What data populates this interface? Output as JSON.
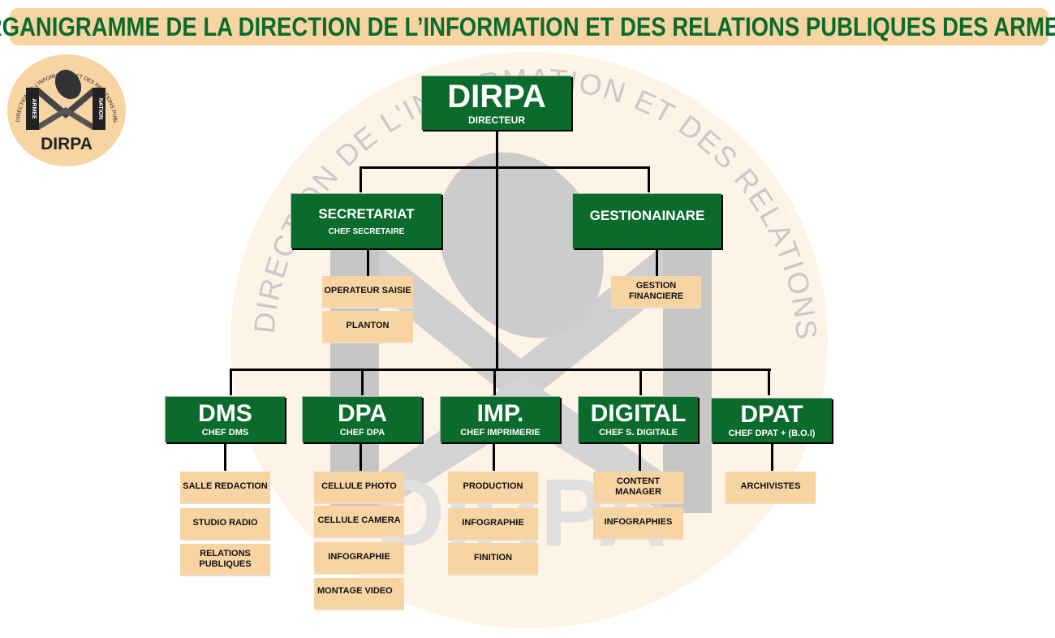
{
  "title": "ORGANIGRAMME DE LA DIRECTION DE L’INFORMATION ET DES RELATIONS PUBLIQUES DES ARMEES",
  "logo": {
    "ring_text": "DIRECTION DE L'INFORMATION ET DES RELATIONS PUBLIQUES DES ARMEES",
    "left_word": "ARMEE",
    "right_word": "NATION",
    "name": "DIRPA"
  },
  "watermark": {
    "ring_text": "DIRECTION DE L'INFORMATION ET DES RELATIONS PUBLIQUES DES ARMÉES",
    "name": "DIRPA"
  },
  "colors": {
    "green": "#0b6b2c",
    "peach": "#f8d4a3",
    "title_green": "#0b6b2c"
  },
  "director": {
    "name": "DIRPA",
    "role": "DIRECTEUR"
  },
  "secretariat": {
    "name": "SECRETARIAT",
    "role": "CHEF SECRETAIRE",
    "units": [
      "OPERATEUR SAISIE",
      "PLANTON"
    ]
  },
  "gestion": {
    "name": "GESTIONAINARE",
    "units": [
      "GESTION FINANCIERE"
    ]
  },
  "divisions": [
    {
      "name": "DMS",
      "role": "CHEF DMS",
      "units": [
        "SALLE REDACTION",
        "STUDIO RADIO",
        "RELATIONS PUBLIQUES"
      ]
    },
    {
      "name": "DPA",
      "role": "CHEF DPA",
      "units": [
        "CELLULE PHOTO",
        "CELLULE CAMERA",
        "INFOGRAPHIE",
        "MONTAGE VIDEO"
      ]
    },
    {
      "name": "IMP.",
      "role": "CHEF IMPRIMERIE",
      "units": [
        "PRODUCTION",
        "INFOGRAPHIE",
        "FINITION"
      ]
    },
    {
      "name": "DIGITAL",
      "role": "CHEF S. DIGITALE",
      "units": [
        "CONTENT MANAGER",
        "INFOGRAPHIES"
      ]
    },
    {
      "name": "DPAT",
      "role": "CHEF DPAT + (B.O.I)",
      "units": [
        "ARCHIVISTES"
      ]
    }
  ]
}
